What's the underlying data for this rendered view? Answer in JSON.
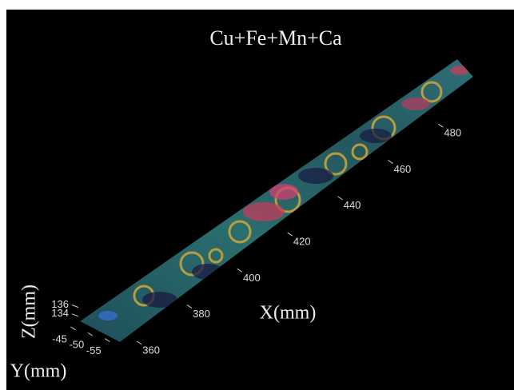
{
  "chart_data": {
    "type": "surface",
    "title": "Cu+Fe+Mn+Ca",
    "xlabel": "X(mm)",
    "ylabel": "Y(mm)",
    "zlabel": "Z(mm)",
    "xlim": [
      352,
      492
    ],
    "xticks": [
      360,
      380,
      400,
      420,
      440,
      460,
      480
    ],
    "ylim": [
      -43,
      -58
    ],
    "yticks": [
      -45,
      -50,
      -55
    ],
    "zlim": [
      132,
      137
    ],
    "zticks": [
      134,
      136
    ]
  }
}
